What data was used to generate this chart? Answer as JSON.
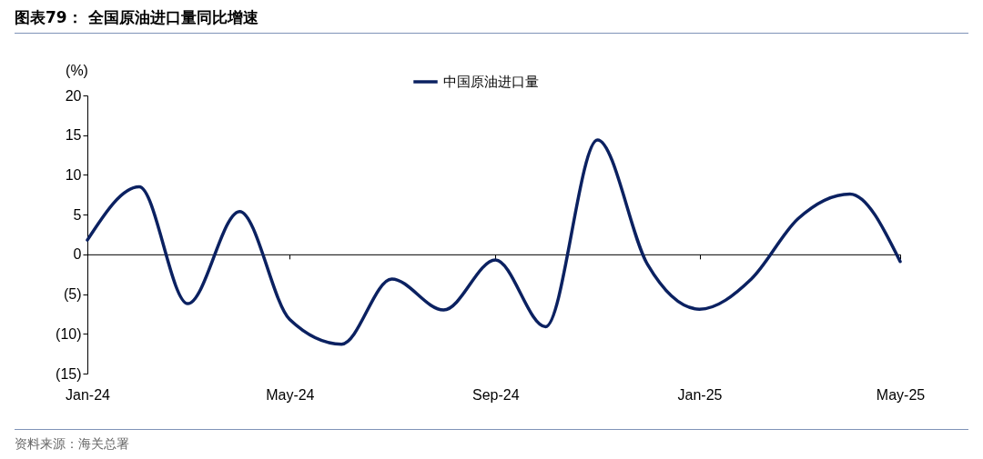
{
  "chart_data": {
    "type": "line",
    "title": "图表79：  全国原油进口量同比增速",
    "ylabel": "(%)",
    "x": [
      "2024-01",
      "2024-02",
      "2024-03",
      "2024-04",
      "2024-05",
      "2024-06",
      "2024-07",
      "2024-08",
      "2024-09",
      "2024-10",
      "2024-11",
      "2024-12",
      "2025-01",
      "2025-02",
      "2025-03",
      "2025-04",
      "2025-05"
    ],
    "series": [
      {
        "name": "中国原油进口量",
        "color": "#0b2161",
        "values": [
          1.8,
          8.5,
          -6.2,
          5.4,
          -8.2,
          -11.3,
          -3.1,
          -7.0,
          -0.7,
          -9.1,
          14.4,
          -1.3,
          -6.9,
          -3.1,
          4.5,
          7.6,
          -0.9
        ]
      }
    ],
    "xlim": [
      "2024-01",
      "2025-05"
    ],
    "xticks": [
      {
        "value": "2024-01",
        "label": "Jan-24"
      },
      {
        "value": "2024-05",
        "label": "May-24"
      },
      {
        "value": "2024-09",
        "label": "Sep-24"
      },
      {
        "value": "2025-01",
        "label": "Jan-25"
      },
      {
        "value": "2025-05",
        "label": "May-25"
      }
    ],
    "ylim": [
      -15,
      20
    ],
    "yticks": [
      {
        "value": -15,
        "label": "(15)"
      },
      {
        "value": -10,
        "label": "(10)"
      },
      {
        "value": -5,
        "label": "(5)"
      },
      0,
      5,
      10,
      15,
      20
    ],
    "legend": "top",
    "line_style": "solid",
    "marker": "none",
    "annotations": [
      "资料来源：海关总署"
    ]
  }
}
